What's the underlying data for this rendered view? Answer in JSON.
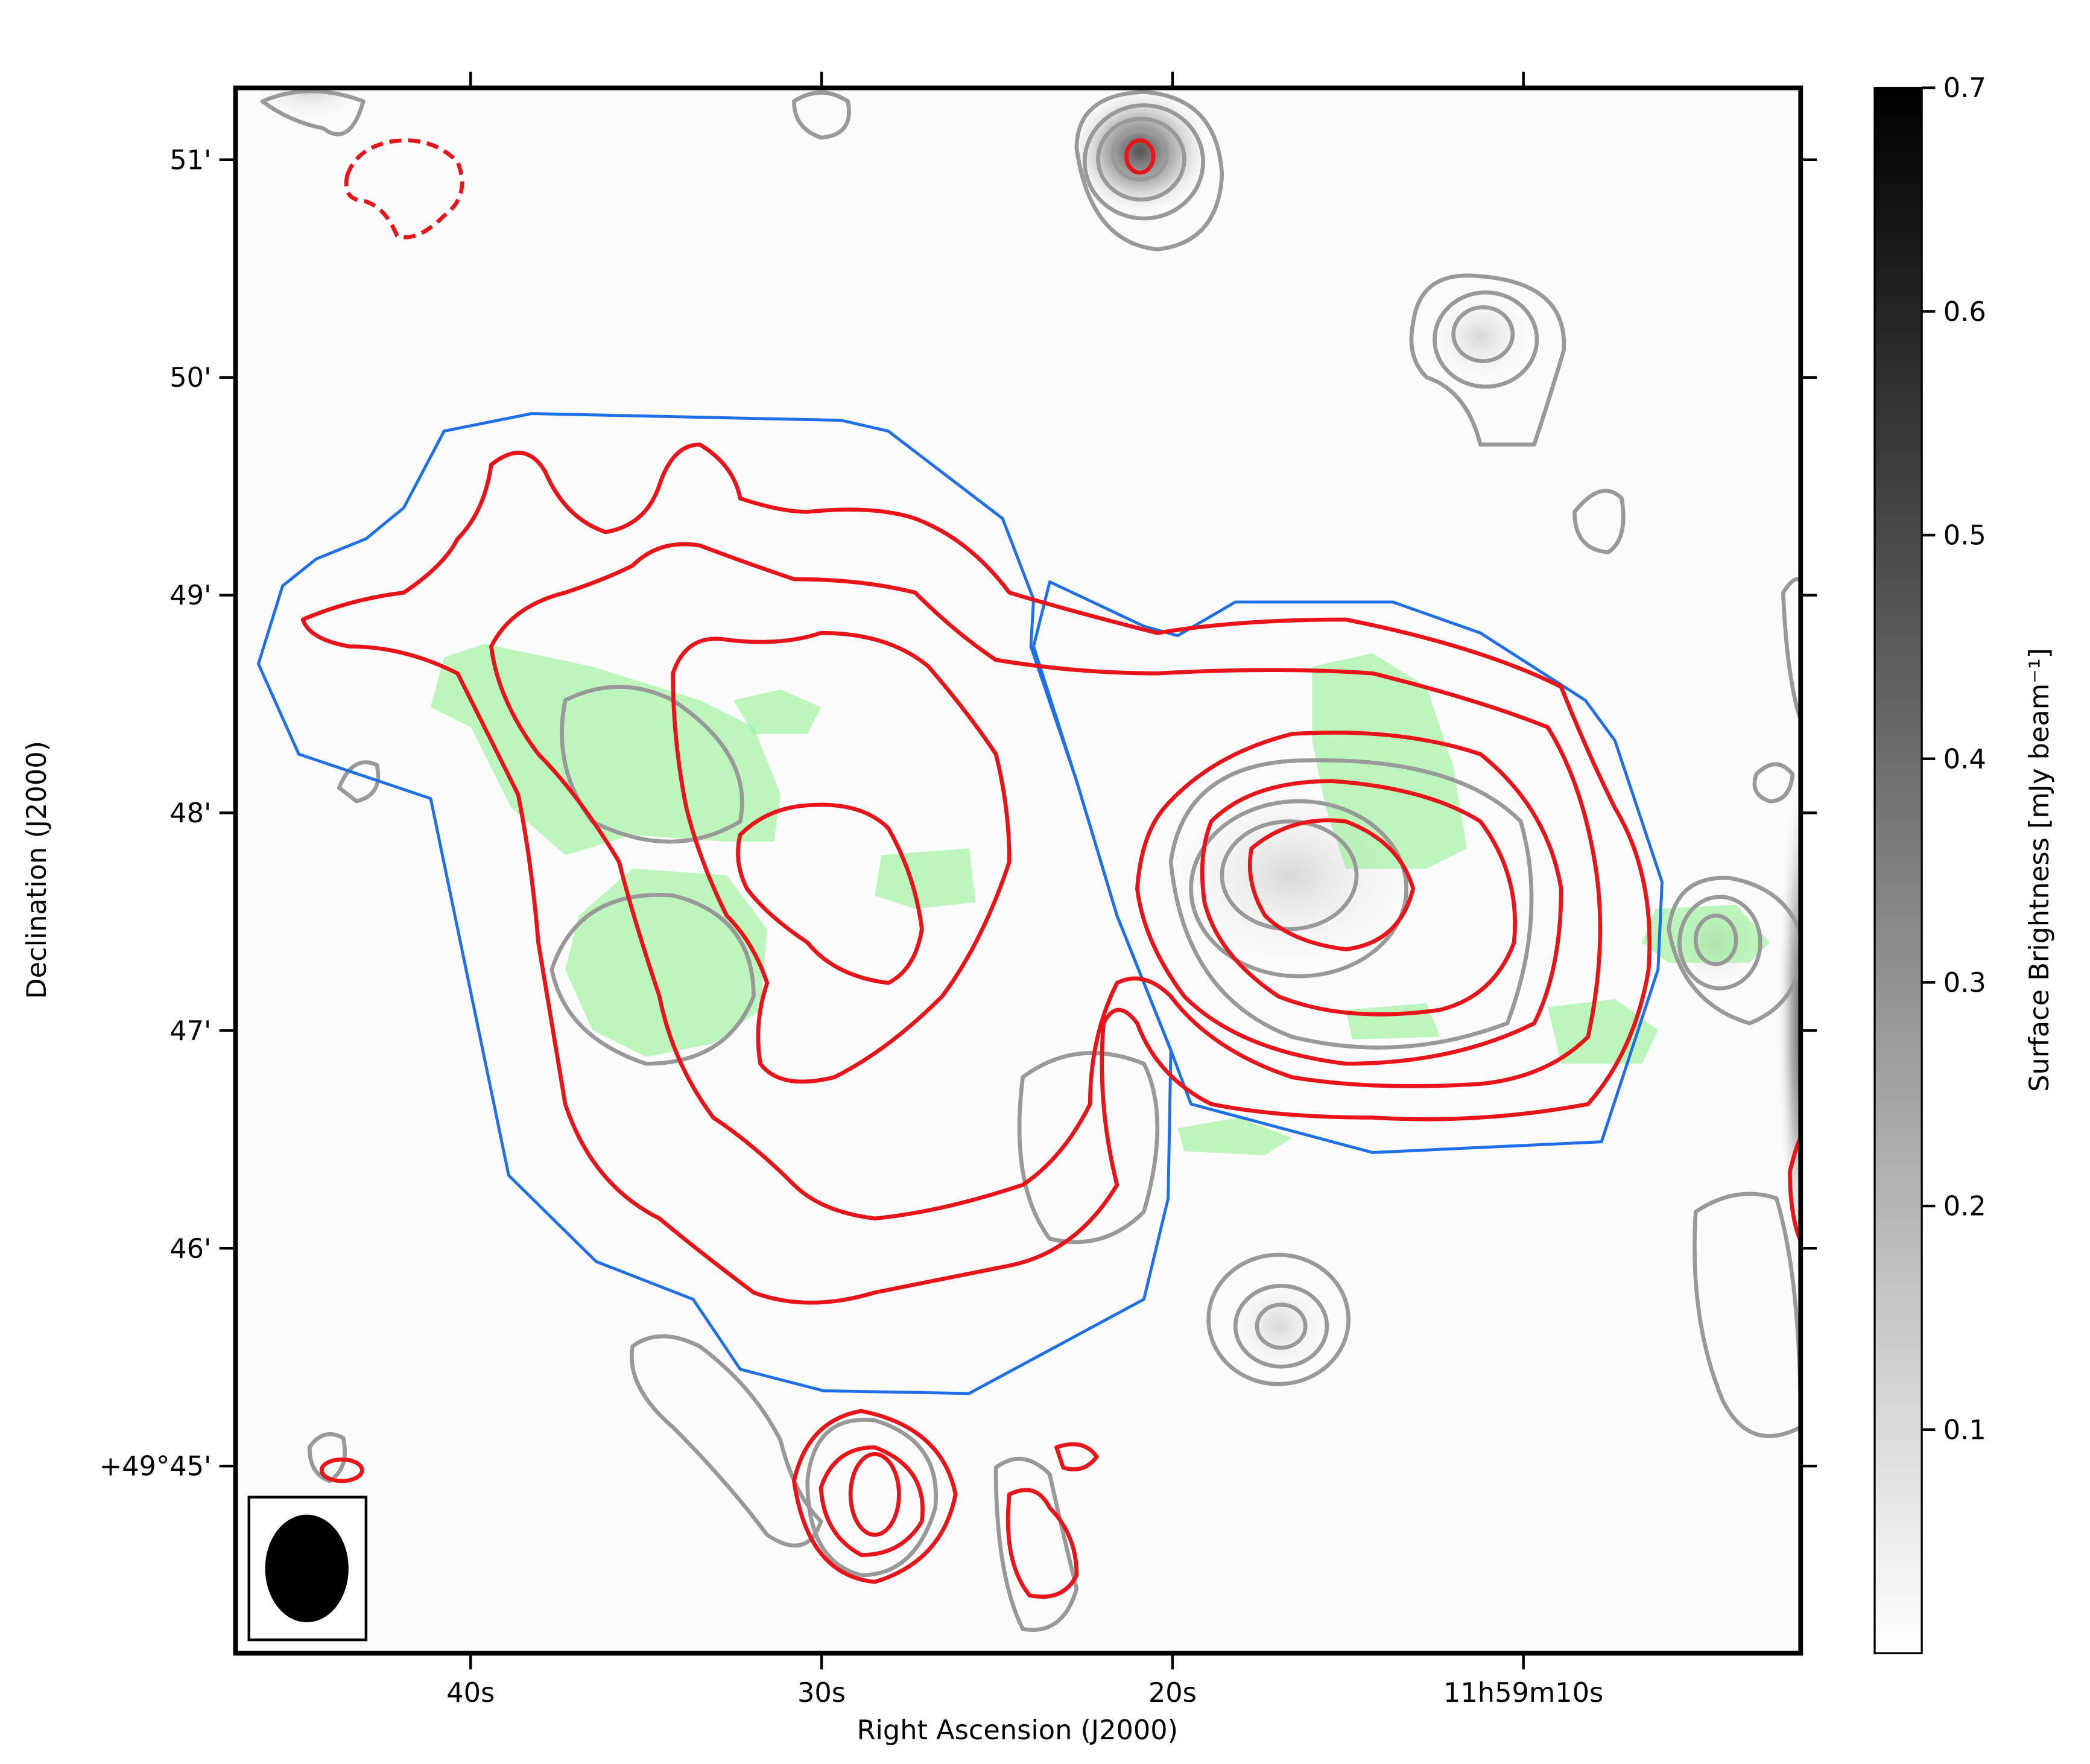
{
  "chart_data": {
    "type": "image",
    "x_label": "Right Ascension (J2000)",
    "y_label": "Declination (J2000)",
    "xlim": [
      46.7,
      2.1
    ],
    "xticks": [
      {
        "value": 40,
        "label": "40s"
      },
      {
        "value": 30,
        "label": "30s"
      },
      {
        "value": 20,
        "label": "20s"
      },
      {
        "value": 10,
        "label": "11h59m10s"
      }
    ],
    "ylim": [
      44.14,
      51.33
    ],
    "yticks": [
      {
        "value": 45,
        "label": "+49°45'"
      },
      {
        "value": 46,
        "label": "46'"
      },
      {
        "value": 47,
        "label": "47'"
      },
      {
        "value": 48,
        "label": "48'"
      },
      {
        "value": 49,
        "label": "49'"
      },
      {
        "value": 50,
        "label": "50'"
      },
      {
        "value": 51,
        "label": "51'"
      }
    ],
    "colorbar": {
      "label": "Surface Brightness [mJy beam⁻¹]",
      "lim": [
        0,
        0.7
      ],
      "ticks": [
        0.1,
        0.2,
        0.3,
        0.4,
        0.5,
        0.6,
        0.7
      ]
    }
  }
}
